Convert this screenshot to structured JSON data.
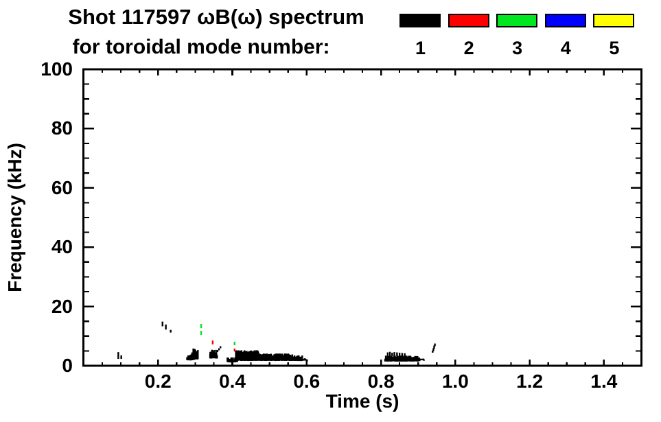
{
  "title": {
    "line1": "Shot 117597 ωB(ω) spectrum",
    "line2": "for toroidal mode number:"
  },
  "chart_data": {
    "type": "scatter",
    "title": "Shot 117597 ωB(ω) spectrum for toroidal mode number: 1 2 3 4 5",
    "xlabel": "Time (s)",
    "ylabel": "Frequency (kHz)",
    "xlim": [
      0,
      1.5
    ],
    "ylim": [
      0,
      100
    ],
    "grid": false,
    "axis_style": "boxed-inward-ticks",
    "x_axis": {
      "tick_values": [
        0.2,
        0.4,
        0.6,
        0.8,
        1.0,
        1.2,
        1.4
      ],
      "tick_labels": [
        "0.2",
        "0.4",
        "0.6",
        "0.8",
        "1.0",
        "1.2",
        "1.4"
      ],
      "minor_step": 0.05
    },
    "y_axis": {
      "tick_values": [
        0,
        20,
        40,
        60,
        80,
        100
      ],
      "tick_labels": [
        "0",
        "20",
        "40",
        "60",
        "80",
        "100"
      ],
      "minor_step": 5
    },
    "legend": {
      "position": "top-right",
      "entries": [
        {
          "label": "1",
          "color": "#000000"
        },
        {
          "label": "2",
          "color": "#ff0000"
        },
        {
          "label": "3",
          "color": "#00e620"
        },
        {
          "label": "4",
          "color": "#0000ff"
        },
        {
          "label": "5",
          "color": "#ffff00"
        }
      ]
    },
    "series": [
      {
        "name": "1",
        "color": "#000000",
        "dashes": [
          [
            0.093,
            2.3,
            4.6
          ],
          [
            0.101,
            2.3,
            3.5
          ],
          [
            0.212,
            13.3,
            14.9
          ],
          [
            0.221,
            12.2,
            13.9
          ],
          [
            0.234,
            11.2,
            12.1
          ],
          [
            0.36,
            4.6,
            5.3
          ],
          [
            0.364,
            5.2,
            5.9
          ],
          [
            0.368,
            5.9,
            6.6
          ],
          [
            0.818,
            3.0,
            4.5
          ],
          [
            0.824,
            3.0,
            4.7
          ],
          [
            0.83,
            3.2,
            4.4
          ],
          [
            0.836,
            3.0,
            4.6
          ],
          [
            0.843,
            3.2,
            4.5
          ],
          [
            0.85,
            3.0,
            4.4
          ],
          [
            0.857,
            3.2,
            4.3
          ],
          [
            0.864,
            3.0,
            4.2
          ],
          [
            0.939,
            4.4,
            5.1
          ],
          [
            0.941,
            4.9,
            5.9
          ],
          [
            0.943,
            5.7,
            6.8
          ],
          [
            0.945,
            6.6,
            7.5
          ]
        ],
        "bands": [
          {
            "t0": 0.279,
            "t1": 0.293,
            "f0": 1.8,
            "f1": 3.6,
            "n": 26,
            "seed": 1
          },
          {
            "t0": 0.291,
            "t1": 0.307,
            "f0": 2.0,
            "f1": 5.8,
            "n": 30,
            "seed": 2
          },
          {
            "t0": 0.34,
            "t1": 0.357,
            "f0": 2.4,
            "f1": 5.4,
            "n": 26,
            "seed": 3
          },
          {
            "t0": 0.388,
            "t1": 0.412,
            "f0": 1.1,
            "f1": 2.8,
            "n": 16,
            "seed": 4
          },
          {
            "t0": 0.41,
            "t1": 0.47,
            "f0": 1.6,
            "f1": 5.2,
            "n": 95,
            "seed": 5
          },
          {
            "t0": 0.468,
            "t1": 0.562,
            "f0": 1.6,
            "f1": 4.1,
            "n": 140,
            "seed": 6
          },
          {
            "t0": 0.558,
            "t1": 0.588,
            "f0": 1.6,
            "f1": 3.5,
            "n": 40,
            "seed": 7
          },
          {
            "t0": 0.586,
            "t1": 0.602,
            "f0": 1.7,
            "f1": 2.5,
            "n": 8,
            "seed": 8
          },
          {
            "t0": 0.812,
            "t1": 0.903,
            "f0": 1.4,
            "f1": 3.4,
            "n": 120,
            "seed": 9
          },
          {
            "t0": 0.902,
            "t1": 0.917,
            "f0": 1.8,
            "f1": 2.5,
            "n": 7,
            "seed": 10
          }
        ]
      },
      {
        "name": "2",
        "color": "#ff0000",
        "dashes": [
          [
            0.347,
            7.2,
            8.5
          ],
          [
            0.406,
            4.8,
            5.8
          ]
        ],
        "bands": []
      },
      {
        "name": "3",
        "color": "#00e620",
        "dashes": [
          [
            0.316,
            12.7,
            14.1
          ],
          [
            0.316,
            10.4,
            11.8
          ],
          [
            0.406,
            6.9,
            8.1
          ]
        ],
        "bands": []
      },
      {
        "name": "4",
        "color": "#0000ff",
        "dashes": [],
        "bands": []
      },
      {
        "name": "5",
        "color": "#ffff00",
        "dashes": [],
        "bands": []
      }
    ]
  }
}
